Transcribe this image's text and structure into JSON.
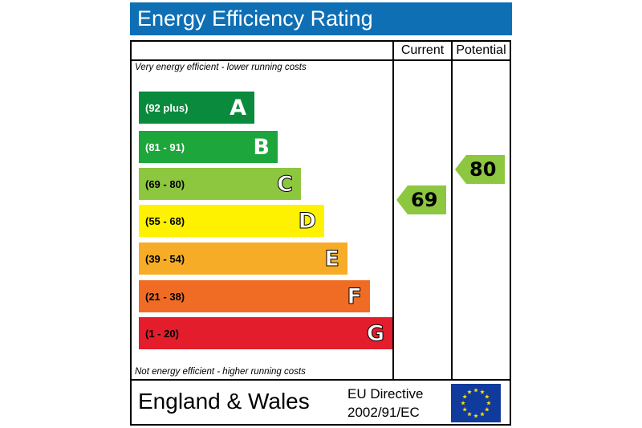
{
  "title": "Energy Efficiency Rating",
  "columns": {
    "current": "Current",
    "potential": "Potential"
  },
  "top_note": "Very energy efficient - lower running costs",
  "bottom_note": "Not energy efficient - higher running costs",
  "bands": [
    {
      "letter": "A",
      "range": "(92 plus)",
      "color": "#0a8a3c",
      "text_color": "#ffffff"
    },
    {
      "letter": "B",
      "range": "(81 - 91)",
      "color": "#1ca63c",
      "text_color": "#ffffff"
    },
    {
      "letter": "C",
      "range": "(69 - 80)",
      "color": "#8dc63f",
      "text_color": "#000000"
    },
    {
      "letter": "D",
      "range": "(55 - 68)",
      "color": "#fff200",
      "text_color": "#000000"
    },
    {
      "letter": "E",
      "range": "(39 - 54)",
      "color": "#f7ac28",
      "text_color": "#000000"
    },
    {
      "letter": "F",
      "range": "(21 - 38)",
      "color": "#f06c25",
      "text_color": "#000000"
    },
    {
      "letter": "G",
      "range": "(1 - 20)",
      "color": "#e31d2b",
      "text_color": "#000000"
    }
  ],
  "current_rating": {
    "value": "69",
    "band": "C",
    "color": "#8dc63f"
  },
  "potential_rating": {
    "value": "80",
    "band": "C",
    "color": "#8dc63f"
  },
  "footer": {
    "region": "England & Wales",
    "directive_line1": "EU Directive",
    "directive_line2": "2002/91/EC",
    "flag_icon": "eu-flag-icon",
    "flag_color": "#103b9c",
    "star_color": "#ffdd00"
  }
}
